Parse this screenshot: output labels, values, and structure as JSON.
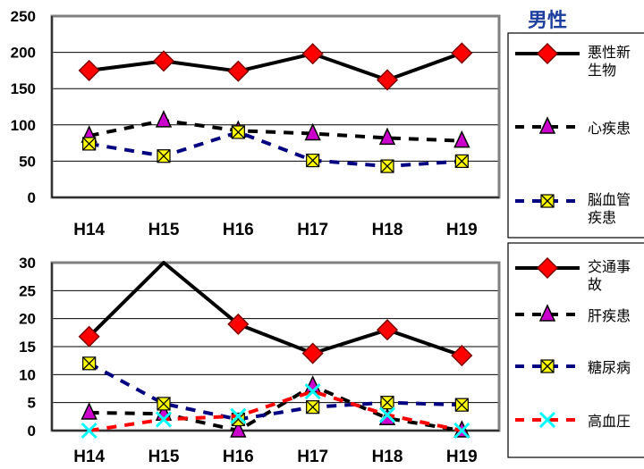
{
  "chart_data": [
    {
      "type": "line",
      "title": "男性",
      "categories": [
        "H14",
        "H15",
        "H16",
        "H17",
        "H18",
        "H19"
      ],
      "ylim": [
        0,
        250
      ],
      "yticks": [
        "0",
        "50",
        "100",
        "150",
        "200",
        "250"
      ],
      "grid": true,
      "legend_position": "right",
      "series": [
        {
          "name": "悪性新生物",
          "legend_lines": [
            "悪性新",
            "生物"
          ],
          "values": [
            175,
            188,
            174,
            198,
            162,
            199
          ],
          "color": "#000000",
          "marker": "diamond",
          "marker_fill": "#ff0000",
          "dash": "solid"
        },
        {
          "name": "心疾患",
          "legend_lines": [
            "心疾患"
          ],
          "values": [
            85,
            106,
            92,
            88,
            82,
            78
          ],
          "color": "#000000",
          "marker": "triangle",
          "marker_fill": "#cc00cc",
          "dash": "dashed"
        },
        {
          "name": "脳血管疾患",
          "legend_lines": [
            "脳血管",
            "疾患"
          ],
          "values": [
            74,
            57,
            90,
            51,
            43,
            50
          ],
          "color": "#000080",
          "marker": "xbox",
          "marker_fill": "#ffff00",
          "dash": "dashed"
        }
      ]
    },
    {
      "type": "line",
      "categories": [
        "H14",
        "H15",
        "H16",
        "H17",
        "H18",
        "H19"
      ],
      "ylim": [
        0,
        30
      ],
      "yticks": [
        "0",
        "5",
        "10",
        "15",
        "20",
        "25",
        "30"
      ],
      "grid": true,
      "legend_position": "right",
      "series": [
        {
          "name": "交通事故",
          "legend_lines": [
            "交通事",
            "故"
          ],
          "values": [
            16.8,
            30.5,
            19,
            13.8,
            18,
            13.4
          ],
          "color": "#000000",
          "marker": "diamond",
          "marker_fill": "#ff0000",
          "dash": "solid"
        },
        {
          "name": "肝疾患",
          "legend_lines": [
            "肝疾患"
          ],
          "values": [
            3.2,
            3,
            0,
            8,
            2.2,
            0
          ],
          "color": "#000000",
          "marker": "triangle",
          "marker_fill": "#cc00cc",
          "dash": "dashed"
        },
        {
          "name": "糖尿病",
          "legend_lines": [
            "糖尿病"
          ],
          "values": [
            12,
            4.8,
            2,
            4.2,
            5,
            4.6
          ],
          "color": "#000080",
          "marker": "xbox",
          "marker_fill": "#ffff00",
          "dash": "dashed"
        },
        {
          "name": "高血圧",
          "legend_lines": [
            "高血圧"
          ],
          "values": [
            0,
            2,
            2.6,
            7,
            2.8,
            0
          ],
          "color": "#ff0000",
          "marker": "x",
          "marker_fill": "#00ffff",
          "dash": "dashed"
        }
      ]
    }
  ]
}
